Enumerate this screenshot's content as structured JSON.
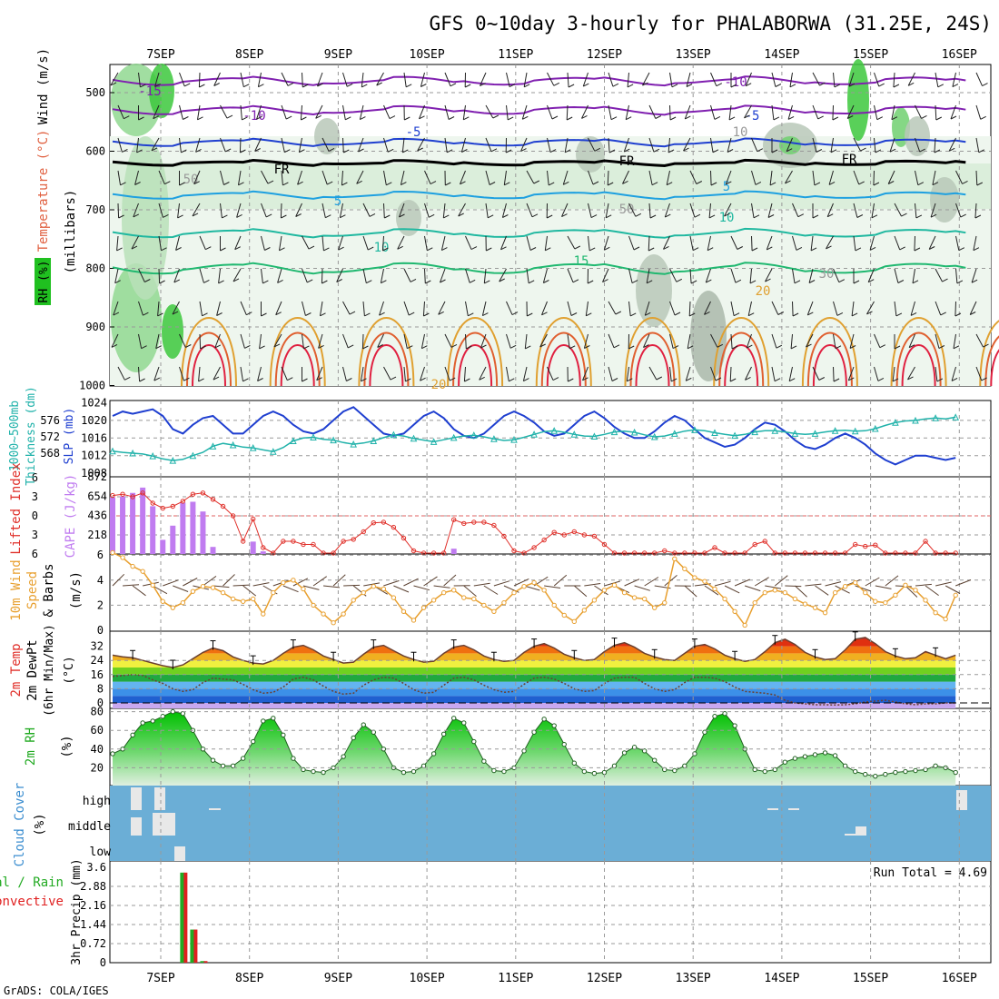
{
  "chart_data": {
    "type": "meteogram",
    "title": "GFS 0~10day 3-hourly for PHALABORWA (31.25E, 24S)",
    "credit": "GrADS: COLA/IGES",
    "run_total_label": "Run Total = 4.69",
    "date_labels": [
      "7SEP",
      "8SEP",
      "9SEP",
      "10SEP",
      "11SEP",
      "12SEP",
      "13SEP",
      "14SEP",
      "15SEP",
      "16SEP"
    ],
    "panels": {
      "upper_air": {
        "ylabels": [
          "Temperature (°C)",
          "Wind (m/s)",
          "(millibars)",
          "RH (%)"
        ],
        "y_ticks": [
          "500",
          "600",
          "700",
          "800",
          "900",
          "1000"
        ],
        "contour_labels": [
          "-15",
          "-10",
          "-10",
          "-5",
          "-5",
          "-5",
          "FR",
          "FR",
          "FR",
          "5",
          "5",
          "10",
          "10",
          "15",
          "20",
          "20",
          "30",
          "50",
          "50",
          "10"
        ]
      },
      "thickness_slp": {
        "ylabels": [
          "1000~500mb",
          "Thickness (dm)",
          "SLP (mb)"
        ],
        "thickness_ticks": [
          "576",
          "572",
          "568"
        ],
        "slp_ticks": [
          "1024",
          "1020",
          "1016",
          "1012",
          "1008"
        ],
        "slp": [
          1021,
          1022,
          1021.5,
          1022,
          1022.5,
          1021,
          1018,
          1017,
          1019,
          1020.5,
          1021,
          1019,
          1017,
          1017,
          1019,
          1021,
          1022,
          1021,
          1019,
          1017.5,
          1017,
          1018,
          1020,
          1022,
          1023,
          1021,
          1019,
          1017,
          1016.5,
          1017,
          1019,
          1021,
          1022,
          1020.5,
          1018,
          1016.5,
          1016,
          1017,
          1019,
          1021,
          1022,
          1021,
          1019.5,
          1017.5,
          1016.5,
          1017,
          1019,
          1021,
          1022,
          1020.5,
          1018.5,
          1017,
          1016,
          1016,
          1017.5,
          1019.5,
          1021,
          1020,
          1018,
          1016,
          1015,
          1014,
          1014.5,
          1016,
          1018,
          1019.5,
          1019,
          1017.5,
          1015.5,
          1014,
          1013.5,
          1014.5,
          1016,
          1017,
          1016,
          1014.5,
          1012.5,
          1011,
          1010,
          1011,
          1012,
          1012,
          1011.5,
          1011,
          1011.5
        ],
        "thickness": [
          568.5,
          568.2,
          568,
          567.8,
          567.3,
          566.6,
          566.2,
          566.5,
          567.4,
          568.2,
          569.7,
          570.4,
          570,
          569.5,
          569.3,
          568.8,
          568.4,
          569.4,
          571,
          571.7,
          571.9,
          571.4,
          571.2,
          570.6,
          570.2,
          570.5,
          571,
          571.8,
          572.5,
          572.2,
          571.6,
          571.2,
          570.8,
          571.3,
          571.8,
          572.2,
          572.4,
          572,
          571.5,
          571.1,
          571.3,
          571.9,
          572.6,
          573.3,
          573.5,
          573.1,
          572.6,
          572.2,
          572.1,
          572.6,
          573.2,
          573.4,
          573.1,
          572.5,
          572,
          572.2,
          572.8,
          573.4,
          573.7,
          573.5,
          573,
          572.6,
          572.3,
          572.6,
          573.2,
          573.5,
          573.5,
          573.2,
          572.8,
          572.6,
          572.8,
          573.2,
          573.5,
          573.6,
          573.4,
          573.5,
          574,
          574.8,
          575.5,
          575.9,
          576,
          576.4,
          576.6,
          576.4,
          576.8
        ]
      },
      "cape_li": {
        "ylabels": [
          "Lifted Index",
          "CAPE (J/kg)"
        ],
        "li_ticks": [
          "-6",
          "-3",
          "0",
          "3",
          "6"
        ],
        "cape_ticks": [
          "872",
          "654",
          "436",
          "218"
        ],
        "cape": [
          640,
          650,
          690,
          750,
          540,
          160,
          320,
          580,
          590,
          480,
          80,
          0,
          0,
          0,
          140,
          30,
          0,
          0,
          0,
          0,
          0,
          0,
          0,
          0,
          0,
          0,
          0,
          0,
          0,
          0,
          0,
          0,
          0,
          0,
          60,
          0,
          0,
          0,
          0,
          0,
          0,
          0,
          0,
          0,
          0,
          0,
          0,
          0,
          0,
          0,
          0,
          0,
          0,
          0,
          0,
          0,
          0,
          0,
          0,
          0,
          0,
          0,
          0,
          0,
          0,
          0,
          0,
          0,
          0,
          0,
          0,
          0,
          0,
          0,
          0,
          0,
          0,
          0,
          0,
          0,
          0,
          0,
          0,
          0,
          0
        ],
        "lifted_index": [
          -3.2,
          -3.4,
          -3,
          -3.6,
          -2,
          -1.2,
          -1.5,
          -2.3,
          -3.4,
          -3.6,
          -2.6,
          -1.5,
          0,
          4,
          0.5,
          5,
          6.5,
          4,
          4,
          4.5,
          4.5,
          6.5,
          6.5,
          4,
          3.7,
          2.5,
          1.1,
          1,
          1.8,
          3.5,
          5.5,
          6.5,
          6.5,
          6,
          0.6,
          1.2,
          1,
          1,
          1.5,
          3.2,
          5.5,
          6,
          5,
          3.8,
          2.6,
          3,
          2.5,
          3,
          3.2,
          4.5,
          6.5,
          6.5,
          6.5,
          6.5,
          6.5,
          5.5,
          6,
          6.5,
          6.5,
          6.5,
          5,
          6.5,
          6.5,
          6.5,
          4.5,
          4,
          6.5,
          6.5,
          6.5,
          6.5,
          6.5,
          6.5,
          6.5,
          6.5,
          4.5,
          4.8,
          4.6,
          6.5,
          6.5,
          6.5,
          6.5,
          4,
          6.5,
          6.5,
          6.5
        ]
      },
      "wind10m": {
        "ylabels": [
          "10m Wind",
          "Speed",
          "& Barbs",
          "(m/s)"
        ],
        "y_ticks": [
          "0",
          "2",
          "4",
          "6"
        ],
        "speed": [
          6.2,
          5.8,
          5.1,
          4.7,
          3.6,
          2.3,
          1.8,
          2.2,
          3.1,
          3.5,
          3.4,
          3,
          2.5,
          2.3,
          2.5,
          1.3,
          3,
          3.8,
          4,
          3.3,
          2,
          1.3,
          0.6,
          1.3,
          2.4,
          3,
          3.5,
          3.3,
          2.6,
          1.5,
          0.8,
          1.8,
          2.4,
          3,
          3.2,
          2.6,
          2.5,
          2,
          1.5,
          2.2,
          3,
          3.5,
          3.8,
          3.2,
          2,
          1.2,
          0.7,
          1.6,
          2.4,
          3.2,
          3.6,
          3,
          2.6,
          2.5,
          1.8,
          2.2,
          5.7,
          4.9,
          4.2,
          3.9,
          3.3,
          2.5,
          1.5,
          0.4,
          2.2,
          3,
          3.2,
          3,
          2.5,
          2.1,
          1.8,
          1.4,
          3,
          3.5,
          3.8,
          3,
          2.3,
          2.2,
          2.8,
          3.6,
          3.2,
          2.4,
          1.4,
          0.9,
          2.8
        ]
      },
      "temp2m": {
        "ylabels": [
          "2m Temp",
          "2m DewPt",
          "(6hr Min/Max)",
          "(°C)"
        ],
        "y_ticks": [
          "0",
          "8",
          "16",
          "24",
          "32"
        ],
        "temp": [
          27,
          26,
          25.5,
          24,
          22.5,
          21,
          20,
          21.5,
          25,
          28.5,
          31,
          29.5,
          26,
          24,
          22.5,
          22,
          24,
          28,
          31.5,
          32.5,
          30,
          26.5,
          24.5,
          22.5,
          23,
          27.5,
          31.5,
          32.5,
          29.5,
          26.5,
          24.5,
          23,
          23.5,
          28,
          31.5,
          32.5,
          30,
          26.5,
          24.5,
          23.5,
          24,
          28.5,
          32,
          33.5,
          31,
          27.5,
          25.5,
          24,
          24.5,
          29,
          32.5,
          34,
          31.5,
          28,
          26,
          24.5,
          24,
          28,
          32,
          33,
          30.5,
          27,
          25,
          23.5,
          24.5,
          29,
          34,
          36,
          33,
          28.5,
          26,
          24.5,
          25,
          30,
          36,
          37,
          33.5,
          29,
          26.5,
          25,
          25.5,
          29,
          27,
          25,
          27
        ],
        "dewpoint": [
          15,
          15.5,
          16,
          15.5,
          13,
          11,
          8,
          6.5,
          7.5,
          11.5,
          14,
          13.5,
          13,
          10.5,
          7.5,
          5.5,
          6,
          9,
          13.5,
          14.5,
          13,
          9.5,
          6.5,
          5,
          5.5,
          10,
          13,
          14.5,
          14,
          11,
          7.5,
          5.5,
          6,
          10,
          14,
          14.5,
          13,
          10,
          7.5,
          6,
          6.5,
          10.5,
          14,
          14.5,
          13.5,
          11,
          8,
          6.5,
          7,
          11,
          14,
          14.5,
          14.5,
          11,
          8,
          6.5,
          7.5,
          11.5,
          14.5,
          14.5,
          14,
          12,
          9,
          6.5,
          6,
          5.5,
          4.5,
          1.5,
          0,
          -0.5,
          -1,
          -1,
          -1.2,
          -1,
          -0.5,
          0.5,
          1,
          1.5,
          0.5,
          -0.5,
          -1,
          -0.5,
          -0.5,
          0,
          0
        ]
      },
      "rh2m": {
        "ylabels": [
          "2m RH",
          "(%)"
        ],
        "y_ticks": [
          "20",
          "40",
          "60",
          "80"
        ],
        "rh": [
          35,
          40,
          55,
          68,
          70,
          75,
          80,
          78,
          60,
          40,
          28,
          22,
          22,
          30,
          48,
          70,
          73,
          55,
          30,
          18,
          16,
          15,
          20,
          32,
          52,
          66,
          58,
          40,
          20,
          15,
          16,
          22,
          35,
          56,
          73,
          68,
          48,
          27,
          17,
          16,
          20,
          38,
          58,
          72,
          65,
          45,
          25,
          16,
          14,
          15,
          22,
          36,
          42,
          38,
          28,
          18,
          17,
          22,
          35,
          58,
          75,
          78,
          65,
          40,
          18,
          16,
          18,
          26,
          30,
          32,
          34,
          36,
          33,
          22,
          16,
          13,
          11,
          13,
          15,
          16,
          17,
          18,
          22,
          20,
          15
        ]
      },
      "cloud": {
        "ylabels": [
          "Cloud Cover",
          "(%)"
        ],
        "levels": [
          "high",
          "middle",
          "low"
        ]
      },
      "precip": {
        "ylabels": [
          "Total / Rain",
          "Convective",
          "3hr Precip (mm)"
        ],
        "y_ticks": [
          "0",
          "0.72",
          "1.44",
          "2.16",
          "2.88",
          "3.6"
        ],
        "total": [
          0,
          0,
          0,
          0,
          0,
          0,
          0,
          3.4,
          1.25,
          0.06,
          0,
          0,
          0,
          0,
          0,
          0,
          0,
          0,
          0,
          0,
          0,
          0,
          0,
          0,
          0,
          0,
          0,
          0,
          0,
          0,
          0,
          0,
          0,
          0,
          0,
          0,
          0,
          0,
          0,
          0,
          0,
          0,
          0,
          0,
          0,
          0,
          0,
          0,
          0,
          0,
          0,
          0,
          0,
          0,
          0,
          0,
          0,
          0,
          0,
          0,
          0,
          0,
          0,
          0,
          0,
          0,
          0,
          0,
          0,
          0,
          0,
          0,
          0,
          0,
          0,
          0,
          0,
          0,
          0,
          0,
          0,
          0,
          0,
          0,
          0
        ],
        "convective": [
          0,
          0,
          0,
          0,
          0,
          0,
          0,
          3.4,
          1.25,
          0.06,
          0,
          0,
          0,
          0,
          0,
          0,
          0,
          0,
          0,
          0,
          0,
          0,
          0,
          0,
          0,
          0,
          0,
          0,
          0,
          0,
          0,
          0,
          0,
          0,
          0,
          0,
          0,
          0,
          0,
          0,
          0,
          0,
          0,
          0,
          0,
          0,
          0,
          0,
          0,
          0,
          0,
          0,
          0,
          0,
          0,
          0,
          0,
          0,
          0,
          0,
          0,
          0,
          0,
          0,
          0,
          0,
          0,
          0,
          0,
          0,
          0,
          0,
          0,
          0,
          0,
          0,
          0,
          0,
          0,
          0,
          0,
          0,
          0,
          0,
          0
        ]
      }
    }
  },
  "colors": {
    "title": "#000000",
    "cloud_bg": "#6baed6",
    "rh_green": "#00c800",
    "slp": "#1f3fd0",
    "thickness": "#20b2aa",
    "cape": "#c07cf0",
    "lifted_index": "#e0302a",
    "wind": "#e8a030",
    "cloud_title": "#3c8ed0",
    "precip_total": "#22aa22",
    "precip_conv": "#e02020"
  }
}
